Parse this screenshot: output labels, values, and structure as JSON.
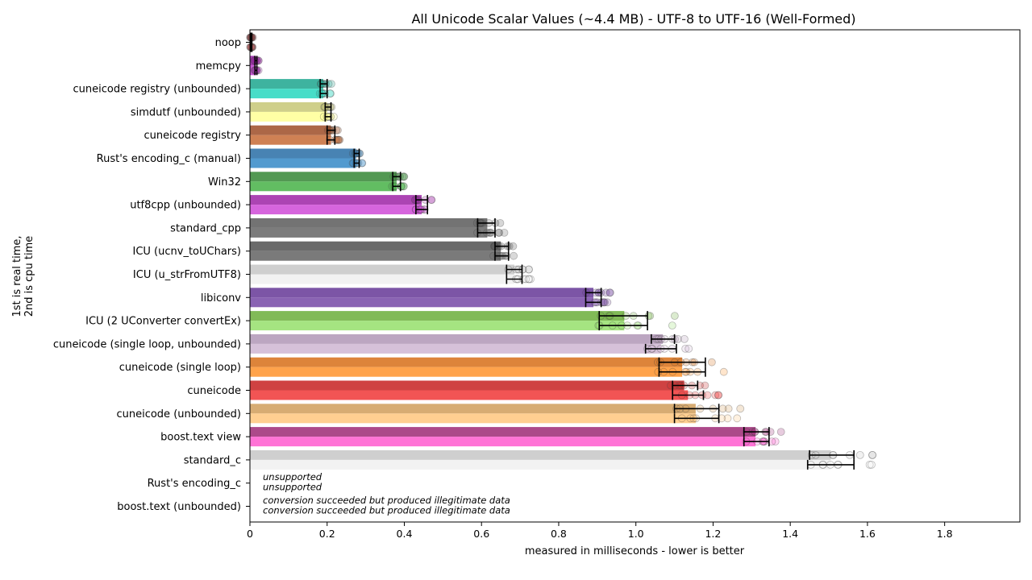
{
  "chart_data": {
    "type": "bar",
    "title": "All Unicode Scalar Values (~4.4 MB) - UTF-8 to UTF-16 (Well-Formed)",
    "xlabel": "measured in milliseconds - lower is better",
    "ylabel_line1": "1st is real time,",
    "ylabel_line2": "2nd is cpu time",
    "xlim": [
      0,
      1.995
    ],
    "xticks": [
      "0",
      "0.2",
      "0.4",
      "0.6",
      "0.8",
      "1.0",
      "1.2",
      "1.4",
      "1.6",
      "1.8"
    ],
    "categories": [
      "noop",
      "memcpy",
      "cuneicode registry (unbounded)",
      "simdutf (unbounded)",
      "cuneicode registry",
      "Rust's encoding_c (manual)",
      "Win32",
      "utf8cpp (unbounded)",
      "standard_cpp",
      "ICU (ucnv_toUChars)",
      "ICU (u_strFromUTF8)",
      "libiconv",
      "ICU (2 UConverter convertEx)",
      "cuneicode (single loop, unbounded)",
      "cuneicode (single loop)",
      "cuneicode",
      "cuneicode (unbounded)",
      "boost.text view",
      "standard_c",
      "Rust's encoding_c",
      "boost.text (unbounded)"
    ],
    "series": [
      {
        "name": "real time",
        "values": [
          0.003,
          0.015,
          0.19,
          0.2,
          0.21,
          0.275,
          0.38,
          0.445,
          0.615,
          0.65,
          0.685,
          0.89,
          0.97,
          1.07,
          1.12,
          1.125,
          1.155,
          1.31,
          1.505,
          null,
          null
        ],
        "err_low": [
          0.002,
          0.013,
          0.182,
          0.195,
          0.2,
          0.27,
          0.37,
          0.43,
          0.59,
          0.635,
          0.665,
          0.87,
          0.905,
          1.04,
          1.06,
          1.095,
          1.1,
          1.28,
          1.45,
          null,
          null
        ],
        "err_high": [
          0.005,
          0.018,
          0.2,
          0.21,
          0.22,
          0.283,
          0.39,
          0.46,
          0.635,
          0.67,
          0.705,
          0.91,
          1.03,
          1.1,
          1.18,
          1.16,
          1.215,
          1.345,
          1.565,
          null,
          null
        ]
      },
      {
        "name": "cpu time",
        "values": [
          0.003,
          0.015,
          0.19,
          0.2,
          0.21,
          0.275,
          0.38,
          0.445,
          0.615,
          0.65,
          0.685,
          0.89,
          0.97,
          1.065,
          1.12,
          1.135,
          1.155,
          1.31,
          1.505,
          null,
          null
        ],
        "err_low": [
          0.002,
          0.013,
          0.182,
          0.195,
          0.2,
          0.27,
          0.37,
          0.43,
          0.59,
          0.635,
          0.665,
          0.87,
          0.905,
          1.025,
          1.06,
          1.095,
          1.1,
          1.28,
          1.445,
          null,
          null
        ],
        "err_high": [
          0.005,
          0.018,
          0.2,
          0.21,
          0.22,
          0.283,
          0.39,
          0.46,
          0.635,
          0.67,
          0.705,
          0.91,
          1.03,
          1.105,
          1.18,
          1.175,
          1.215,
          1.345,
          1.565,
          null,
          null
        ]
      }
    ],
    "colors": {
      "real": [
        "#8c3f3f",
        "#9a1fa8",
        "#23a892",
        "#c8c87a",
        "#a0522d",
        "#2f72a8",
        "#3a8a3a",
        "#a02aa8",
        "#606060",
        "#555555",
        "#c8c8c8",
        "#6a3d9a",
        "#70b040",
        "#b39ab8",
        "#d8731f",
        "#c82828",
        "#d2a060",
        "#a0307a",
        "#c8c8c8"
      ],
      "cpu": [
        "#c26060",
        "#c040d0",
        "#2ed8c0",
        "#ffff99",
        "#c8703c",
        "#3a8cc8",
        "#4cb44c",
        "#d050d8",
        "#6a6a6a",
        "#686868",
        "#f0f0f0",
        "#7a4da8",
        "#98e070",
        "#d0b8d4",
        "#ff9632",
        "#f03c3c",
        "#ffc882",
        "#ff60d0",
        "#f0f0f0"
      ]
    },
    "annotations": [
      {
        "category": "Rust's encoding_c",
        "line1": "unsupported",
        "line2": "unsupported"
      },
      {
        "category": "boost.text (unbounded)",
        "line1": "conversion succeeded but produced illegitimate data",
        "line2": "conversion succeeded but produced illegitimate data"
      }
    ],
    "grid": false,
    "legend": "none"
  }
}
